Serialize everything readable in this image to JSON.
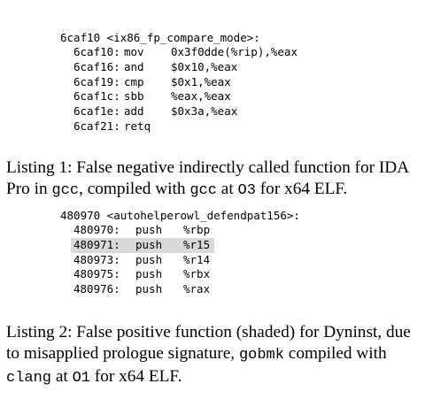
{
  "listings": [
    {
      "header": "6caf10 <ix86_fp_compare_mode>:",
      "lines": [
        {
          "addr": "6caf10:",
          "op": "mov",
          "args": "0x3f0dde(%rip),%eax"
        },
        {
          "addr": "6caf16:",
          "op": "and",
          "args": "$0x10,%eax"
        },
        {
          "addr": "6caf19:",
          "op": "cmp",
          "args": "$0x1,%eax"
        },
        {
          "addr": "6caf1c:",
          "op": "sbb",
          "args": "%eax,%eax"
        },
        {
          "addr": "6caf1e:",
          "op": "add",
          "args": "$0x3a,%eax"
        },
        {
          "addr": "6caf21:",
          "op": "retq",
          "args": ""
        }
      ],
      "caption": [
        "Listing 1: False negative indirectly called function for IDA Pro in ",
        {
          "code": "gcc"
        },
        ", compiled with ",
        {
          "code": "gcc"
        },
        " at ",
        {
          "code": "O3"
        },
        " for x64 ELF."
      ]
    },
    {
      "header": "480970 <autohelperowl_defendpat156>:",
      "lines": [
        {
          "addr": "480970:",
          "op": "push",
          "args": "%rbp"
        },
        {
          "addr": "480971:",
          "op": "push",
          "args": "%r15",
          "highlight": true
        },
        {
          "addr": "480973:",
          "op": "push",
          "args": "%r14"
        },
        {
          "addr": "480975:",
          "op": "push",
          "args": "%rbx"
        },
        {
          "addr": "480976:",
          "op": "push",
          "args": "%rax"
        }
      ],
      "caption": [
        "Listing 2: False positive function (shaded) for Dyninst, due to misapplied prologue signature, ",
        {
          "code": "gobmk"
        },
        " compiled with ",
        {
          "code": "clang"
        },
        " at ",
        {
          "code": "O1"
        },
        " for x64 ELF."
      ]
    }
  ]
}
